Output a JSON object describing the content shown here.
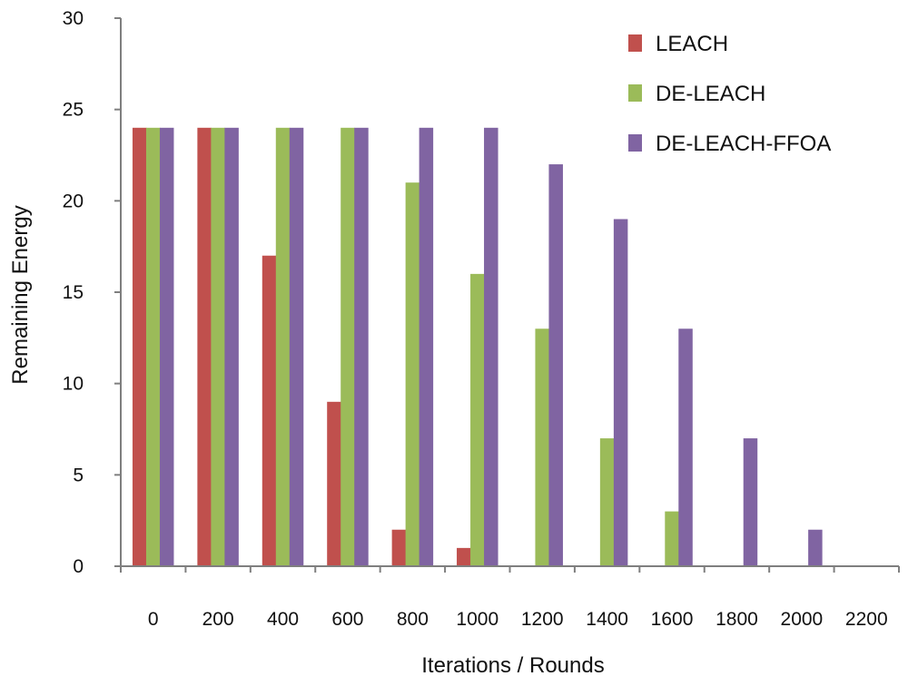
{
  "chart_data": {
    "type": "bar",
    "title": "",
    "xlabel": "Iterations / Rounds",
    "ylabel": "Remaining Energy",
    "ylim": [
      0,
      30
    ],
    "yticks": [
      0,
      5,
      10,
      15,
      20,
      25,
      30
    ],
    "categories": [
      "0",
      "200",
      "400",
      "600",
      "800",
      "1000",
      "1200",
      "1400",
      "1600",
      "1800",
      "2000",
      "2200"
    ],
    "series": [
      {
        "name": "LEACH",
        "color": "#c0504d",
        "values": [
          24,
          24,
          17,
          9,
          2,
          1,
          0,
          0,
          0,
          0,
          0,
          0
        ]
      },
      {
        "name": "DE-LEACH",
        "color": "#9bbb59",
        "values": [
          24,
          24,
          24,
          24,
          21,
          16,
          13,
          7,
          3,
          0,
          0,
          0
        ]
      },
      {
        "name": "DE-LEACH-FFOA",
        "color": "#8064a2",
        "values": [
          24,
          24,
          24,
          24,
          24,
          24,
          22,
          19,
          13,
          7,
          2,
          0
        ]
      }
    ],
    "legend_position": "top-right",
    "grid": false
  }
}
